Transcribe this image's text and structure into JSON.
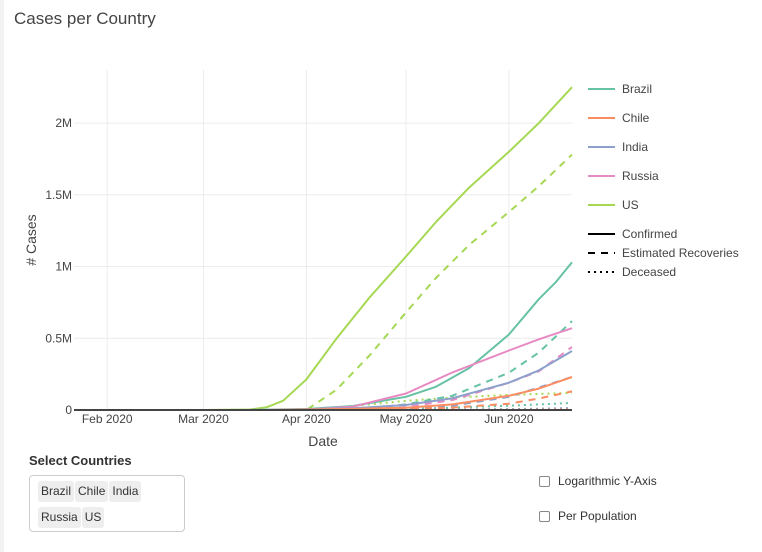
{
  "page": {
    "title": "Cases per Country"
  },
  "colors": {
    "Brazil": "#66c2a5",
    "Chile": "#fc8d62",
    "India": "#8da0cb",
    "Russia": "#e78ac3",
    "US": "#a6d854",
    "gridline": "#ececec",
    "zeroline": "#444444"
  },
  "chart_data": {
    "type": "line",
    "xlabel": "Date",
    "ylabel": "# Cases",
    "x_ticks": [
      {
        "date": "2020-02-01",
        "label": "Feb 2020"
      },
      {
        "date": "2020-03-01",
        "label": "Mar 2020"
      },
      {
        "date": "2020-04-01",
        "label": "Apr 2020"
      },
      {
        "date": "2020-05-01",
        "label": "May 2020"
      },
      {
        "date": "2020-06-01",
        "label": "Jun 2020"
      }
    ],
    "y_ticks": [
      {
        "value": 0,
        "label": "0"
      },
      {
        "value": 500000,
        "label": "0.5M"
      },
      {
        "value": 1000000,
        "label": "1M"
      },
      {
        "value": 1500000,
        "label": "1.5M"
      },
      {
        "value": 2000000,
        "label": "2M"
      }
    ],
    "xlim": [
      "2020-01-22",
      "2020-06-20"
    ],
    "ylim": [
      0,
      2370000
    ],
    "grid": true,
    "legend_position": "right",
    "legend": {
      "countries": [
        "Brazil",
        "Chile",
        "India",
        "Russia",
        "US"
      ],
      "styles": [
        {
          "name": "Confirmed",
          "dash": "solid"
        },
        {
          "name": "Estimated Recoveries",
          "dash": "dash"
        },
        {
          "name": "Deceased",
          "dash": "dot"
        }
      ]
    },
    "series": [
      {
        "country": "US",
        "kind": "Confirmed",
        "points": [
          [
            "2020-03-01",
            100
          ],
          [
            "2020-03-15",
            3500
          ],
          [
            "2020-03-20",
            19000
          ],
          [
            "2020-03-25",
            65000
          ],
          [
            "2020-04-01",
            213000
          ],
          [
            "2020-04-10",
            496000
          ],
          [
            "2020-04-20",
            784000
          ],
          [
            "2020-05-01",
            1070000
          ],
          [
            "2020-05-10",
            1310000
          ],
          [
            "2020-05-20",
            1550000
          ],
          [
            "2020-06-01",
            1800000
          ],
          [
            "2020-06-10",
            2000000
          ],
          [
            "2020-06-20",
            2250000
          ]
        ]
      },
      {
        "country": "US",
        "kind": "Estimated Recoveries",
        "points": [
          [
            "2020-04-01",
            0
          ],
          [
            "2020-04-10",
            140000
          ],
          [
            "2020-04-20",
            380000
          ],
          [
            "2020-05-01",
            680000
          ],
          [
            "2020-05-10",
            920000
          ],
          [
            "2020-05-20",
            1150000
          ],
          [
            "2020-06-01",
            1380000
          ],
          [
            "2020-06-10",
            1560000
          ],
          [
            "2020-06-20",
            1780000
          ]
        ]
      },
      {
        "country": "US",
        "kind": "Deceased",
        "points": [
          [
            "2020-03-20",
            200
          ],
          [
            "2020-04-01",
            5000
          ],
          [
            "2020-04-15",
            28000
          ],
          [
            "2020-05-01",
            64000
          ],
          [
            "2020-05-15",
            87000
          ],
          [
            "2020-06-01",
            105000
          ],
          [
            "2020-06-20",
            119000
          ]
        ]
      },
      {
        "country": "Brazil",
        "kind": "Confirmed",
        "points": [
          [
            "2020-03-15",
            200
          ],
          [
            "2020-04-01",
            6800
          ],
          [
            "2020-04-15",
            28000
          ],
          [
            "2020-05-01",
            92000
          ],
          [
            "2020-05-10",
            162000
          ],
          [
            "2020-05-20",
            292000
          ],
          [
            "2020-06-01",
            526000
          ],
          [
            "2020-06-10",
            772000
          ],
          [
            "2020-06-15",
            888000
          ],
          [
            "2020-06-20",
            1030000
          ]
        ]
      },
      {
        "country": "Brazil",
        "kind": "Estimated Recoveries",
        "points": [
          [
            "2020-04-15",
            0
          ],
          [
            "2020-05-01",
            40000
          ],
          [
            "2020-05-15",
            100000
          ],
          [
            "2020-06-01",
            260000
          ],
          [
            "2020-06-10",
            400000
          ],
          [
            "2020-06-20",
            620000
          ]
        ]
      },
      {
        "country": "Brazil",
        "kind": "Deceased",
        "points": [
          [
            "2020-04-01",
            200
          ],
          [
            "2020-05-01",
            6000
          ],
          [
            "2020-06-01",
            30000
          ],
          [
            "2020-06-20",
            49000
          ]
        ]
      },
      {
        "country": "Russia",
        "kind": "Confirmed",
        "points": [
          [
            "2020-03-20",
            250
          ],
          [
            "2020-04-01",
            2800
          ],
          [
            "2020-04-15",
            24000
          ],
          [
            "2020-05-01",
            115000
          ],
          [
            "2020-05-15",
            262000
          ],
          [
            "2020-06-01",
            415000
          ],
          [
            "2020-06-10",
            493000
          ],
          [
            "2020-06-20",
            570000
          ]
        ]
      },
      {
        "country": "Russia",
        "kind": "Estimated Recoveries",
        "points": [
          [
            "2020-04-15",
            0
          ],
          [
            "2020-05-01",
            20000
          ],
          [
            "2020-05-15",
            70000
          ],
          [
            "2020-06-01",
            190000
          ],
          [
            "2020-06-10",
            270000
          ],
          [
            "2020-06-20",
            440000
          ]
        ]
      },
      {
        "country": "Russia",
        "kind": "Deceased",
        "points": [
          [
            "2020-04-15",
            200
          ],
          [
            "2020-05-15",
            2400
          ],
          [
            "2020-06-20",
            7800
          ]
        ]
      },
      {
        "country": "India",
        "kind": "Confirmed",
        "points": [
          [
            "2020-03-20",
            200
          ],
          [
            "2020-04-15",
            12000
          ],
          [
            "2020-05-01",
            35000
          ],
          [
            "2020-05-15",
            82000
          ],
          [
            "2020-06-01",
            190000
          ],
          [
            "2020-06-10",
            276000
          ],
          [
            "2020-06-20",
            411000
          ]
        ]
      },
      {
        "country": "India",
        "kind": "Estimated Recoveries",
        "points": [
          [
            "2020-04-15",
            0
          ],
          [
            "2020-05-15",
            30000
          ],
          [
            "2020-06-01",
            91000
          ],
          [
            "2020-06-20",
            230000
          ]
        ]
      },
      {
        "country": "India",
        "kind": "Deceased",
        "points": [
          [
            "2020-04-15",
            400
          ],
          [
            "2020-06-01",
            5400
          ],
          [
            "2020-06-20",
            13000
          ]
        ]
      },
      {
        "country": "Chile",
        "kind": "Confirmed",
        "points": [
          [
            "2020-03-20",
            300
          ],
          [
            "2020-04-15",
            8000
          ],
          [
            "2020-05-01",
            16000
          ],
          [
            "2020-05-15",
            39000
          ],
          [
            "2020-06-01",
            99000
          ],
          [
            "2020-06-10",
            149000
          ],
          [
            "2020-06-20",
            230000
          ]
        ]
      },
      {
        "country": "Chile",
        "kind": "Estimated Recoveries",
        "points": [
          [
            "2020-04-20",
            0
          ],
          [
            "2020-05-15",
            17000
          ],
          [
            "2020-06-01",
            44000
          ],
          [
            "2020-06-10",
            80000
          ],
          [
            "2020-06-20",
            130000
          ]
        ]
      },
      {
        "country": "Chile",
        "kind": "Deceased",
        "points": [
          [
            "2020-04-15",
            100
          ],
          [
            "2020-06-01",
            1100
          ],
          [
            "2020-06-20",
            4100
          ]
        ]
      }
    ]
  },
  "controls": {
    "select_label": "Select Countries",
    "selected": [
      "Brazil",
      "Chile",
      "India",
      "Russia",
      "US"
    ],
    "log_checkbox": {
      "label": "Logarithmic Y-Axis",
      "checked": false
    },
    "per_pop_checkbox": {
      "label": "Per Population",
      "checked": false
    }
  }
}
